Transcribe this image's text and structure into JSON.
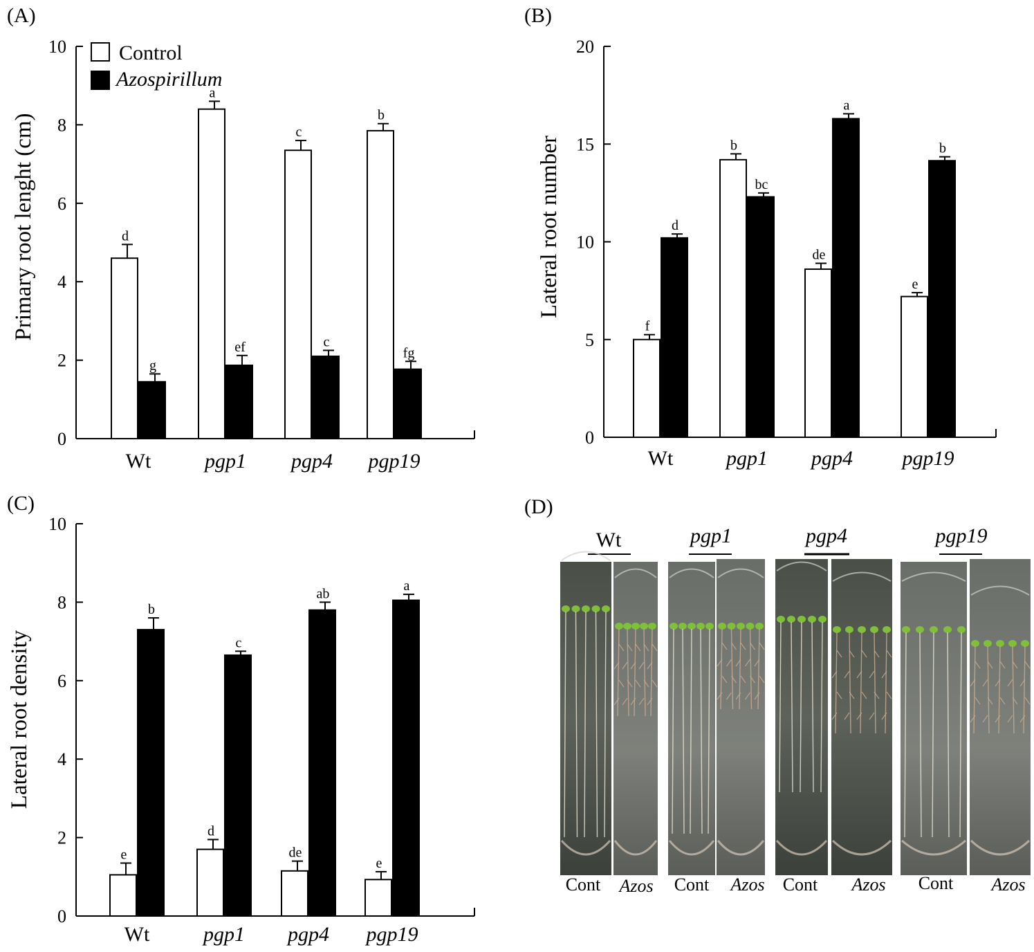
{
  "legend": {
    "control": "Control",
    "azospirillum": "Azospirillum",
    "control_color": "#ffffff",
    "azospirillum_color": "#000000"
  },
  "chart_data": [
    {
      "panel": "(A)",
      "type": "bar",
      "ylabel": "Primary root lenght (cm)",
      "ylim": [
        0,
        10
      ],
      "yticks": [
        0,
        2,
        4,
        6,
        8,
        10
      ],
      "categories": [
        "Wt",
        "pgp1",
        "pgp4",
        "pgp19"
      ],
      "italic_categories": [
        false,
        true,
        true,
        true
      ],
      "series": [
        {
          "name": "Control",
          "color": "#ffffff",
          "values": [
            4.6,
            8.4,
            7.35,
            7.85
          ],
          "errors": [
            0.35,
            0.2,
            0.25,
            0.18
          ],
          "letters": [
            "d",
            "a",
            "c",
            "b"
          ]
        },
        {
          "name": "Azospirillum",
          "color": "#000000",
          "values": [
            1.45,
            1.87,
            2.1,
            1.77
          ],
          "errors": [
            0.2,
            0.25,
            0.15,
            0.2
          ],
          "letters": [
            "g",
            "ef",
            "c",
            "fg"
          ]
        }
      ],
      "legend_position": "top-left"
    },
    {
      "panel": "(B)",
      "type": "bar",
      "ylabel": "Lateral root number",
      "ylim": [
        0,
        20
      ],
      "yticks": [
        0,
        5,
        10,
        15,
        20
      ],
      "categories": [
        "Wt",
        "pgp1",
        "pgp4",
        "pgp19"
      ],
      "italic_categories": [
        false,
        true,
        true,
        true
      ],
      "series": [
        {
          "name": "Control",
          "color": "#ffffff",
          "values": [
            5.0,
            14.2,
            8.6,
            7.2
          ],
          "errors": [
            0.25,
            0.3,
            0.3,
            0.2
          ],
          "letters": [
            "f",
            "b",
            "de",
            "e"
          ]
        },
        {
          "name": "Azospirillum",
          "color": "#000000",
          "values": [
            10.2,
            12.3,
            16.3,
            14.15
          ],
          "errors": [
            0.2,
            0.2,
            0.25,
            0.2
          ],
          "letters": [
            "d",
            "bc",
            "a",
            "b"
          ]
        }
      ]
    },
    {
      "panel": "(C)",
      "type": "bar",
      "ylabel": "Lateral root density",
      "ylim": [
        0,
        10
      ],
      "yticks": [
        0,
        2,
        4,
        6,
        8,
        10
      ],
      "categories": [
        "Wt",
        "pgp1",
        "pgp4",
        "pgp19"
      ],
      "italic_categories": [
        false,
        true,
        true,
        true
      ],
      "series": [
        {
          "name": "Control",
          "color": "#ffffff",
          "values": [
            1.05,
            1.7,
            1.15,
            0.93
          ],
          "errors": [
            0.3,
            0.25,
            0.25,
            0.2
          ],
          "letters": [
            "e",
            "d",
            "de",
            "e"
          ]
        },
        {
          "name": "Azospirillum",
          "color": "#000000",
          "values": [
            7.3,
            6.65,
            7.8,
            8.05
          ],
          "errors": [
            0.3,
            0.1,
            0.2,
            0.15
          ],
          "letters": [
            "b",
            "c",
            "ab",
            "a"
          ]
        }
      ]
    }
  ],
  "photo_panel": {
    "panel": "(D)",
    "groups": [
      {
        "title": "Wt",
        "italic": false,
        "left_label": "Cont",
        "right_label": "Azos"
      },
      {
        "title": "pgp1",
        "italic": true,
        "left_label": "Cont",
        "right_label": "Azos"
      },
      {
        "title": "pgp4",
        "italic": true,
        "left_label": "Cont",
        "right_label": "Azos"
      },
      {
        "title": "pgp19",
        "italic": true,
        "left_label": "Cont",
        "right_label": "Azos"
      }
    ]
  }
}
